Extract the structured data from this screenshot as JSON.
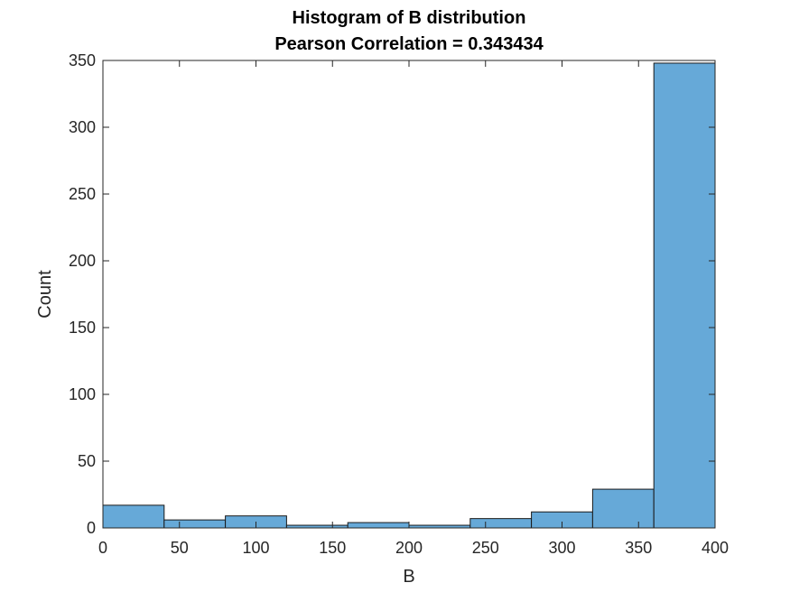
{
  "chart_data": {
    "type": "bar",
    "title": "Histogram of B distribution",
    "subtitle": "Pearson Correlation = 0.343434",
    "xlabel": "B",
    "ylabel": "Count",
    "bin_edges": [
      0,
      40,
      80,
      120,
      160,
      200,
      240,
      280,
      320,
      360,
      400
    ],
    "values": [
      17,
      6,
      9,
      2,
      4,
      2,
      7,
      12,
      29,
      348
    ],
    "xlim": [
      0,
      400
    ],
    "ylim": [
      0,
      350
    ],
    "xticks": [
      0,
      50,
      100,
      150,
      200,
      250,
      300,
      350,
      400
    ],
    "yticks": [
      0,
      50,
      100,
      150,
      200,
      250,
      300,
      350
    ],
    "grid": false,
    "bar_color": "#66a9d8",
    "edge_color": "#1a1a1a"
  }
}
